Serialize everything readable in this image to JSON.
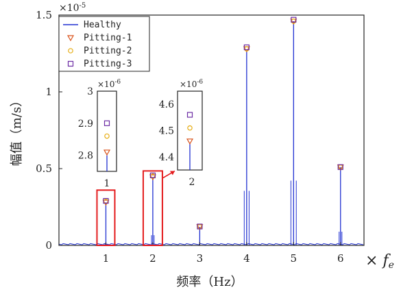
{
  "colors": {
    "healthy_line": "#1f2fd1",
    "pitting1": "#d9521a",
    "pitting2": "#e6ad12",
    "pitting3": "#6c2ba3",
    "highlight_box": "#e41a1c",
    "axis": "#222222"
  },
  "chart_data": {
    "type": "line",
    "xlabel": "频率（Hz）",
    "ylabel": "幅值（m/s）",
    "x_unit_label": "× f_e",
    "y_scale_label": "×10^-5",
    "xlim": [
      0,
      6.5
    ],
    "ylim": [
      0,
      1.5e-05
    ],
    "x_ticks": [
      1,
      2,
      3,
      4,
      5,
      6
    ],
    "x_tick_labels": [
      "1",
      "2",
      "3",
      "4",
      "5",
      "6"
    ],
    "y_ticks": [
      0,
      5e-06,
      1e-05,
      1.5e-05
    ],
    "y_tick_labels": [
      "0",
      "0.5",
      "1",
      "1.5"
    ],
    "harmonics": [
      1,
      2,
      3,
      4,
      5,
      6
    ],
    "series": [
      {
        "name": "Healthy",
        "marker": "line",
        "values": [
          2.8e-06,
          4.45e-06,
          1.2e-06,
          1.27e-05,
          1.46e-05,
          5.1e-06
        ]
      },
      {
        "name": "Pitting-1",
        "marker": "triangle-down",
        "values": [
          2.81e-06,
          4.46e-06,
          1.21e-06,
          1.28e-05,
          1.46e-05,
          5.1e-06
        ]
      },
      {
        "name": "Pitting-2",
        "marker": "circle",
        "values": [
          2.86e-06,
          4.51e-06,
          1.22e-06,
          1.28e-05,
          1.46e-05,
          5.1e-06
        ]
      },
      {
        "name": "Pitting-3",
        "marker": "square",
        "values": [
          2.9e-06,
          4.56e-06,
          1.23e-06,
          1.29e-05,
          1.47e-05,
          5.1e-06
        ]
      }
    ],
    "legend_position": "top-left",
    "insets": [
      {
        "harmonic": 1,
        "scale_label": "×10^-6",
        "ylim": [
          2.75,
          3.0
        ],
        "y_ticks": [
          2.8,
          2.9,
          3.0
        ],
        "y_tick_labels": [
          "2.8",
          "2.9",
          "3"
        ],
        "x_tick_label": "1",
        "values": [
          2.8,
          2.81,
          2.86,
          2.9
        ]
      },
      {
        "harmonic": 2,
        "scale_label": "×10^-6",
        "ylim": [
          4.35,
          4.65
        ],
        "y_ticks": [
          4.4,
          4.5,
          4.6
        ],
        "y_tick_labels": [
          "4.4",
          "4.5",
          "4.6"
        ],
        "x_tick_label": "2",
        "values": [
          4.45,
          4.46,
          4.51,
          4.56
        ]
      }
    ]
  }
}
